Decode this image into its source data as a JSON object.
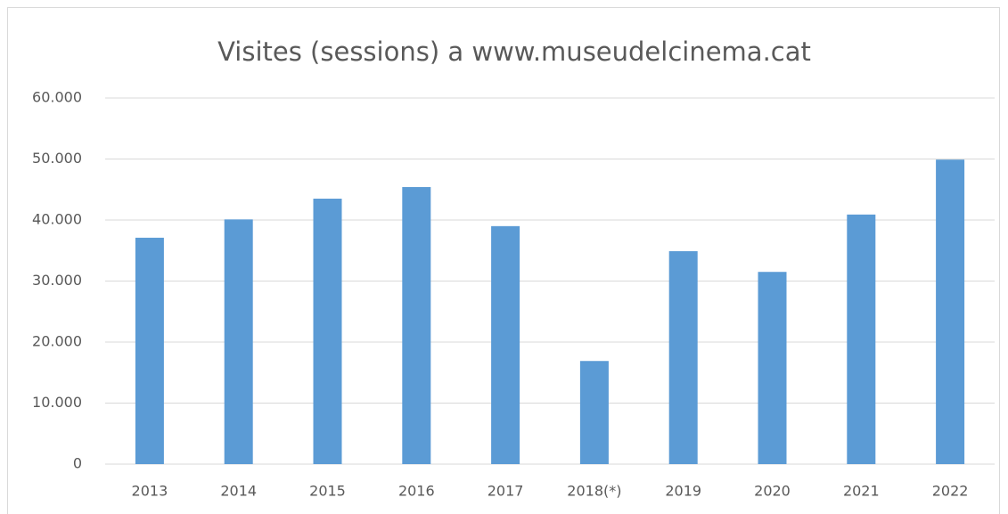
{
  "chart_data": {
    "type": "bar",
    "title": "Visites (sessions) a www.museudelcinema.cat",
    "categories": [
      "2013",
      "2014",
      "2015",
      "2016",
      "2017",
      "2018(*)",
      "2019",
      "2020",
      "2021",
      "2022"
    ],
    "values": [
      37100,
      40100,
      43500,
      45400,
      39000,
      16900,
      34900,
      31500,
      40900,
      49900
    ],
    "color": "#5b9bd5",
    "ylim": [
      0,
      60000
    ],
    "yticks": [
      0,
      {
        "value": 10000,
        "label": "10.000"
      },
      {
        "value": 20000,
        "label": "20.000"
      },
      {
        "value": 30000,
        "label": "30.000"
      },
      {
        "value": 40000,
        "label": "40.000"
      },
      {
        "value": 50000,
        "label": "50.000"
      },
      {
        "value": 60000,
        "label": "60.000"
      }
    ],
    "grid": true
  }
}
